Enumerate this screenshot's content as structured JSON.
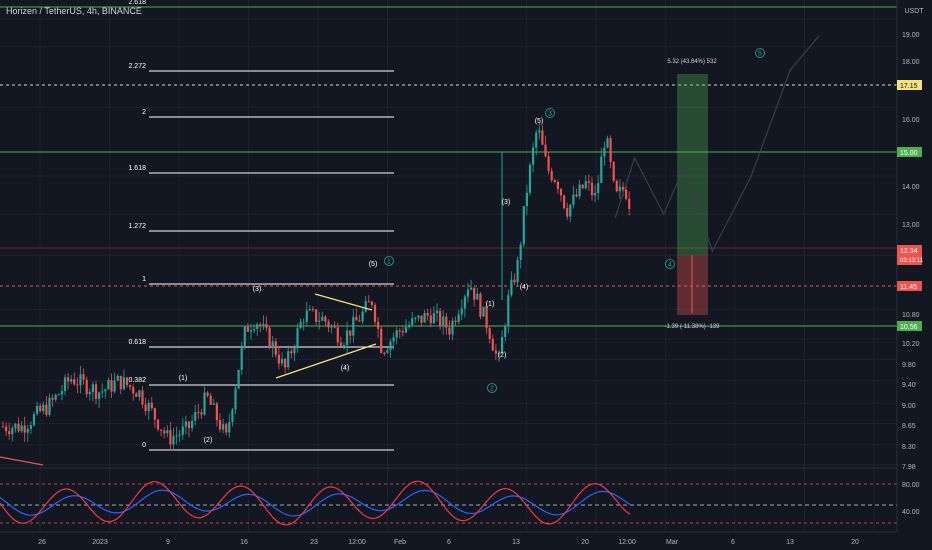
{
  "header": {
    "symbol_line": "Horizen / TetherUS, 4h, BINANCE"
  },
  "price_axis": {
    "currency": "USDT",
    "ticks": [
      "19.00",
      "18.00",
      "16.00",
      "14.00",
      "13.00",
      "12.00",
      "10.80",
      "10.20",
      "9.80",
      "9.40",
      "9.00",
      "8.65",
      "8.30",
      "7.98"
    ]
  },
  "time_axis": {
    "ticks": [
      "26",
      "2023",
      "9",
      "16",
      "23",
      "12:00",
      "Feb",
      "6",
      "13",
      "20",
      "12:00",
      "Mar",
      "6",
      "13",
      "20"
    ]
  },
  "price_tags": [
    {
      "label": "17.15",
      "style": "yellow"
    },
    {
      "label": "15.00",
      "style": "green"
    },
    {
      "label": "12.34",
      "sub": "03:13:11",
      "style": "red"
    },
    {
      "label": "11.45",
      "style": "red"
    },
    {
      "label": "10.56",
      "style": "green"
    }
  ],
  "fib_levels": [
    {
      "label": "2.618"
    },
    {
      "label": "2.272"
    },
    {
      "label": "2"
    },
    {
      "label": "1.618"
    },
    {
      "label": "1.272"
    },
    {
      "label": "1"
    },
    {
      "label": "0.618"
    },
    {
      "label": "0.382"
    },
    {
      "label": "0"
    }
  ],
  "wave_labels": {
    "sub": [
      "(1)",
      "(2)",
      "(3)",
      "(4)",
      "(5)",
      "(1)",
      "(2)",
      "(3)",
      "(4)",
      "(5)"
    ],
    "main": [
      "1",
      "2",
      "3",
      "4",
      "5"
    ]
  },
  "position_tool": {
    "target_text": "5.32 (43.64%) 532",
    "stop_text": "-1.39 (-11.38%) -139"
  },
  "oscillator": {
    "ticks": [
      "80.00",
      "40.00"
    ]
  },
  "colors": {
    "background": "#131722",
    "up": "#26a69a",
    "down": "#ef5350",
    "fib": "#ffffff",
    "green_line": "#4caf50",
    "wave_main": "#26a69a",
    "osc_fast": "#f23645",
    "osc_slow": "#2962ff"
  },
  "chart_data": {
    "type": "candlestick",
    "title": "Horizen / TetherUS, 4h, BINANCE",
    "ylim": [
      7.98,
      19.0
    ],
    "y_scale": "log",
    "key_levels": [
      17.15,
      15.0,
      11.45,
      10.56
    ],
    "last_price": 12.34,
    "price_path": [
      {
        "x": "Dec 23",
        "y": 8.6
      },
      {
        "x": "Dec 26",
        "y": 9.0
      },
      {
        "x": "Dec 28",
        "y": 9.45
      },
      {
        "x": "Dec 31",
        "y": 9.2
      },
      {
        "x": "Jan 2",
        "y": 9.4
      },
      {
        "x": "Jan 4",
        "y": 9.2
      },
      {
        "x": "Jan 7",
        "y": 8.4
      },
      {
        "x": "Jan 9",
        "y": 8.55
      },
      {
        "x": "Jan 11",
        "y": 9.1
      },
      {
        "x": "Jan 13",
        "y": 8.4
      },
      {
        "x": "Jan 15",
        "y": 10.4
      },
      {
        "x": "Jan 16",
        "y": 10.6
      },
      {
        "x": "Jan 18",
        "y": 10.0
      },
      {
        "x": "Jan 19",
        "y": 9.6
      },
      {
        "x": "Jan 21",
        "y": 10.7
      },
      {
        "x": "Jan 23",
        "y": 10.6
      },
      {
        "x": "Jan 25",
        "y": 10.2
      },
      {
        "x": "Jan 27",
        "y": 10.7
      },
      {
        "x": "Jan 28",
        "y": 11.0
      },
      {
        "x": "Jan 29",
        "y": 10.0
      },
      {
        "x": "Jan 31",
        "y": 10.4
      },
      {
        "x": "Feb 3",
        "y": 10.7
      },
      {
        "x": "Feb 5",
        "y": 10.4
      },
      {
        "x": "Feb 7",
        "y": 11.4
      },
      {
        "x": "Feb 9",
        "y": 10.4
      },
      {
        "x": "Feb 10",
        "y": 9.7
      },
      {
        "x": "Feb 11",
        "y": 11.0
      },
      {
        "x": "Feb 12",
        "y": 11.8
      },
      {
        "x": "Feb 13",
        "y": 13.8
      },
      {
        "x": "Feb 14",
        "y": 15.4
      },
      {
        "x": "Feb 15",
        "y": 14.2
      },
      {
        "x": "Feb 16",
        "y": 13.9
      },
      {
        "x": "Feb 17",
        "y": 13.1
      },
      {
        "x": "Feb 19",
        "y": 13.8
      },
      {
        "x": "Feb 20",
        "y": 13.4
      },
      {
        "x": "Feb 21",
        "y": 15.2
      },
      {
        "x": "Feb 22",
        "y": 13.4
      },
      {
        "x": "Feb 23",
        "y": 13.7
      },
      {
        "x": "Feb 24",
        "y": 12.8
      },
      {
        "x": "Feb 25",
        "y": 12.3
      }
    ],
    "projection": [
      {
        "x": "Feb 22",
        "y": 12.9
      },
      {
        "x": "Feb 24",
        "y": 14.5
      },
      {
        "x": "Feb 27",
        "y": 13.0
      },
      {
        "x": "Mar 1",
        "y": 14.2
      },
      {
        "x": "Mar 4",
        "y": 12.1
      },
      {
        "x": "Mar 8",
        "y": 14.0
      },
      {
        "x": "Mar 12",
        "y": 17.2
      },
      {
        "x": "Mar 15",
        "y": 18.4
      }
    ],
    "oscillator_range": [
      20,
      100
    ]
  }
}
